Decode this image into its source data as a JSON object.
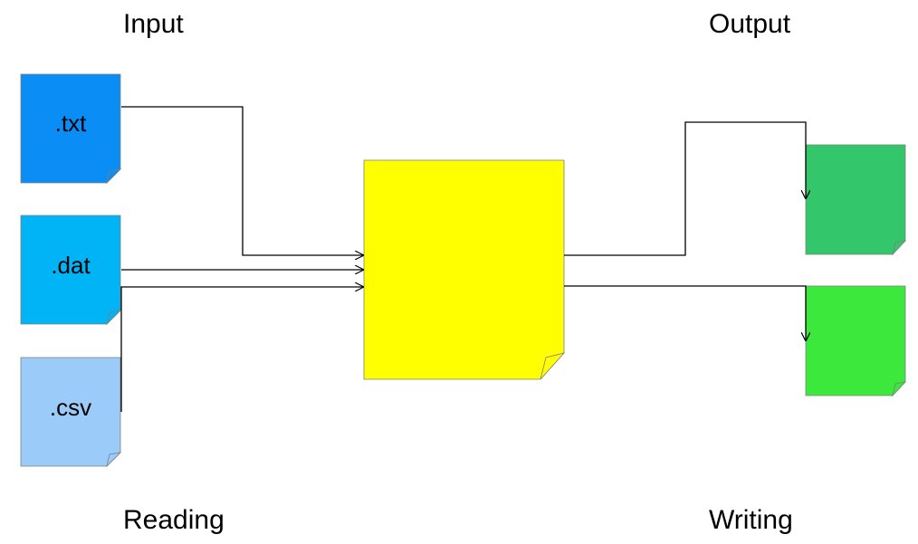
{
  "headers": {
    "input": "Input",
    "output": "Output",
    "reading": "Reading",
    "writing": "Writing"
  },
  "input_files": [
    {
      "label": ".txt",
      "color": "#0A8DF5"
    },
    {
      "label": ".dat",
      "color": "#00B4F5"
    },
    {
      "label": ".csv",
      "color": "#9BCBF8"
    }
  ],
  "processor": {
    "color": "#FFFF00"
  },
  "output_files": [
    {
      "color": "#33C66A"
    },
    {
      "color": "#3BE83B"
    }
  ],
  "connector_color": "#000000"
}
